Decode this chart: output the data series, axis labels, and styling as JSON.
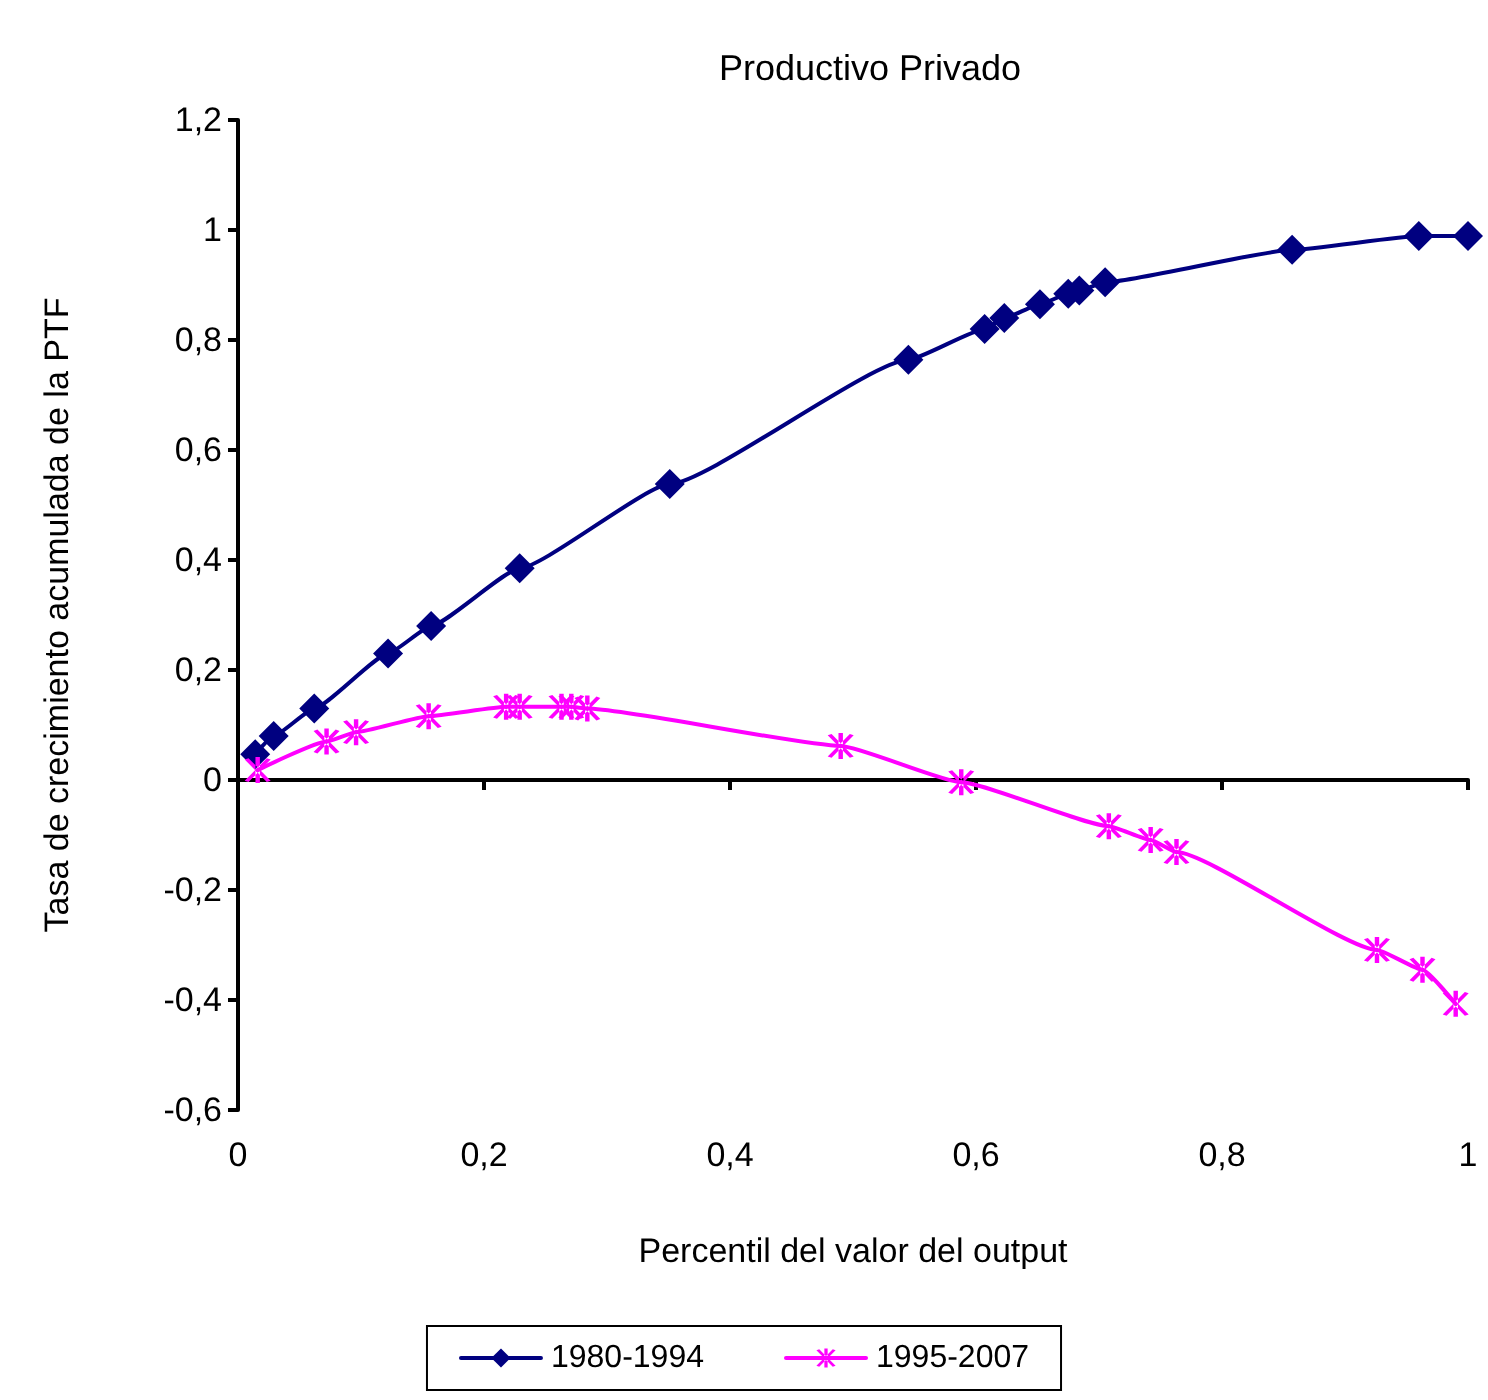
{
  "chart_data": {
    "type": "line",
    "title": "Productivo Privado",
    "xlabel": "Percentil del valor del output",
    "ylabel": "Tasa de crecimiento acumulada de la PTF",
    "series": [
      {
        "name": "1980-1994",
        "color": "#000080",
        "marker": "diamond",
        "x": [
          0.014,
          0.029,
          0.062,
          0.122,
          0.157,
          0.229,
          0.351,
          0.545,
          0.607,
          0.623,
          0.652,
          0.675,
          0.684,
          0.705,
          0.857,
          0.96,
          1
        ],
        "values": [
          0.047,
          0.08,
          0.13,
          0.23,
          0.28,
          0.385,
          0.538,
          0.764,
          0.82,
          0.84,
          0.865,
          0.884,
          0.89,
          0.905,
          0.964,
          0.989,
          0.989
        ]
      },
      {
        "name": "1995-2007",
        "color": "#ff00ff",
        "marker": "cross",
        "x": [
          0.016,
          0.072,
          0.096,
          0.155,
          0.218,
          0.229,
          0.263,
          0.271,
          0.284,
          0.49,
          0.588,
          0.708,
          0.742,
          0.763,
          0.926,
          0.963,
          0.99
        ],
        "values": [
          0.018,
          0.07,
          0.087,
          0.116,
          0.133,
          0.133,
          0.133,
          0.133,
          0.13,
          0.062,
          -0.004,
          -0.084,
          -0.109,
          -0.131,
          -0.309,
          -0.345,
          -0.407
        ]
      }
    ],
    "xlim": [
      0,
      1
    ],
    "xticks": [
      0,
      {
        "value": 0.2,
        "label": "0,2"
      },
      {
        "value": 0.4,
        "label": "0,4"
      },
      {
        "value": 0.6,
        "label": "0,6"
      },
      {
        "value": 0.8,
        "label": "0,8"
      },
      1
    ],
    "ylim": [
      -0.6,
      1.2
    ],
    "yticks": [
      {
        "value": -0.6,
        "label": "-0,6"
      },
      {
        "value": -0.4,
        "label": "-0,4"
      },
      {
        "value": -0.2,
        "label": "-0,2"
      },
      0,
      {
        "value": 0.2,
        "label": "0,2"
      },
      {
        "value": 0.4,
        "label": "0,4"
      },
      {
        "value": 0.6,
        "label": "0,6"
      },
      {
        "value": 0.8,
        "label": "0,8"
      },
      1,
      {
        "value": 1.2,
        "label": "1,2"
      }
    ],
    "legend": "bottom",
    "line_style": "solid"
  }
}
